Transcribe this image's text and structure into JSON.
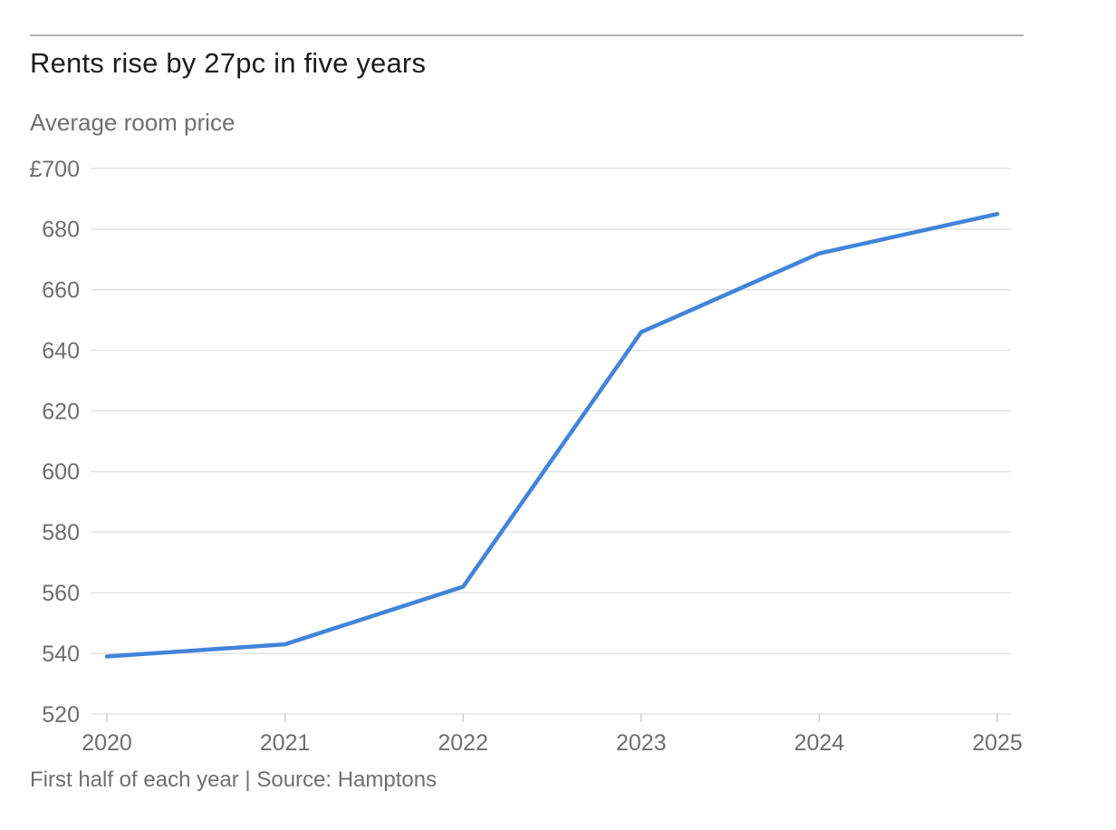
{
  "header": {
    "title": "Rents rise by 27pc in five years",
    "subtitle": "Average room price"
  },
  "footer": {
    "note": "First half of each year | Source: Hamptons"
  },
  "colors": {
    "line": "#4284d9",
    "grid": "#e3e3e3",
    "tick_mark": "#cfcfcf",
    "axis_text": "#6e6e6e",
    "title_text": "#1c1c1c",
    "muted_text": "#6f6f6f",
    "rule": "#b4b4b4"
  },
  "chart_data": {
    "type": "line",
    "title": "Rents rise by 27pc in five years",
    "subtitle": "Average room price",
    "footnote": "First half of each year | Source: Hamptons",
    "categories": [
      "2020",
      "2021",
      "2022",
      "2023",
      "2024",
      "2025"
    ],
    "series": [
      {
        "name": "Average room price",
        "values": [
          539,
          543,
          562,
          646,
          672,
          685
        ]
      }
    ],
    "xlabel": "",
    "ylabel": "Average room price (£)",
    "ylim": [
      520,
      700
    ],
    "ytick_step": 20,
    "ytick_labels": [
      "520",
      "540",
      "560",
      "580",
      "600",
      "620",
      "640",
      "660",
      "680",
      "£700"
    ],
    "grid": true,
    "legend_position": "none"
  }
}
